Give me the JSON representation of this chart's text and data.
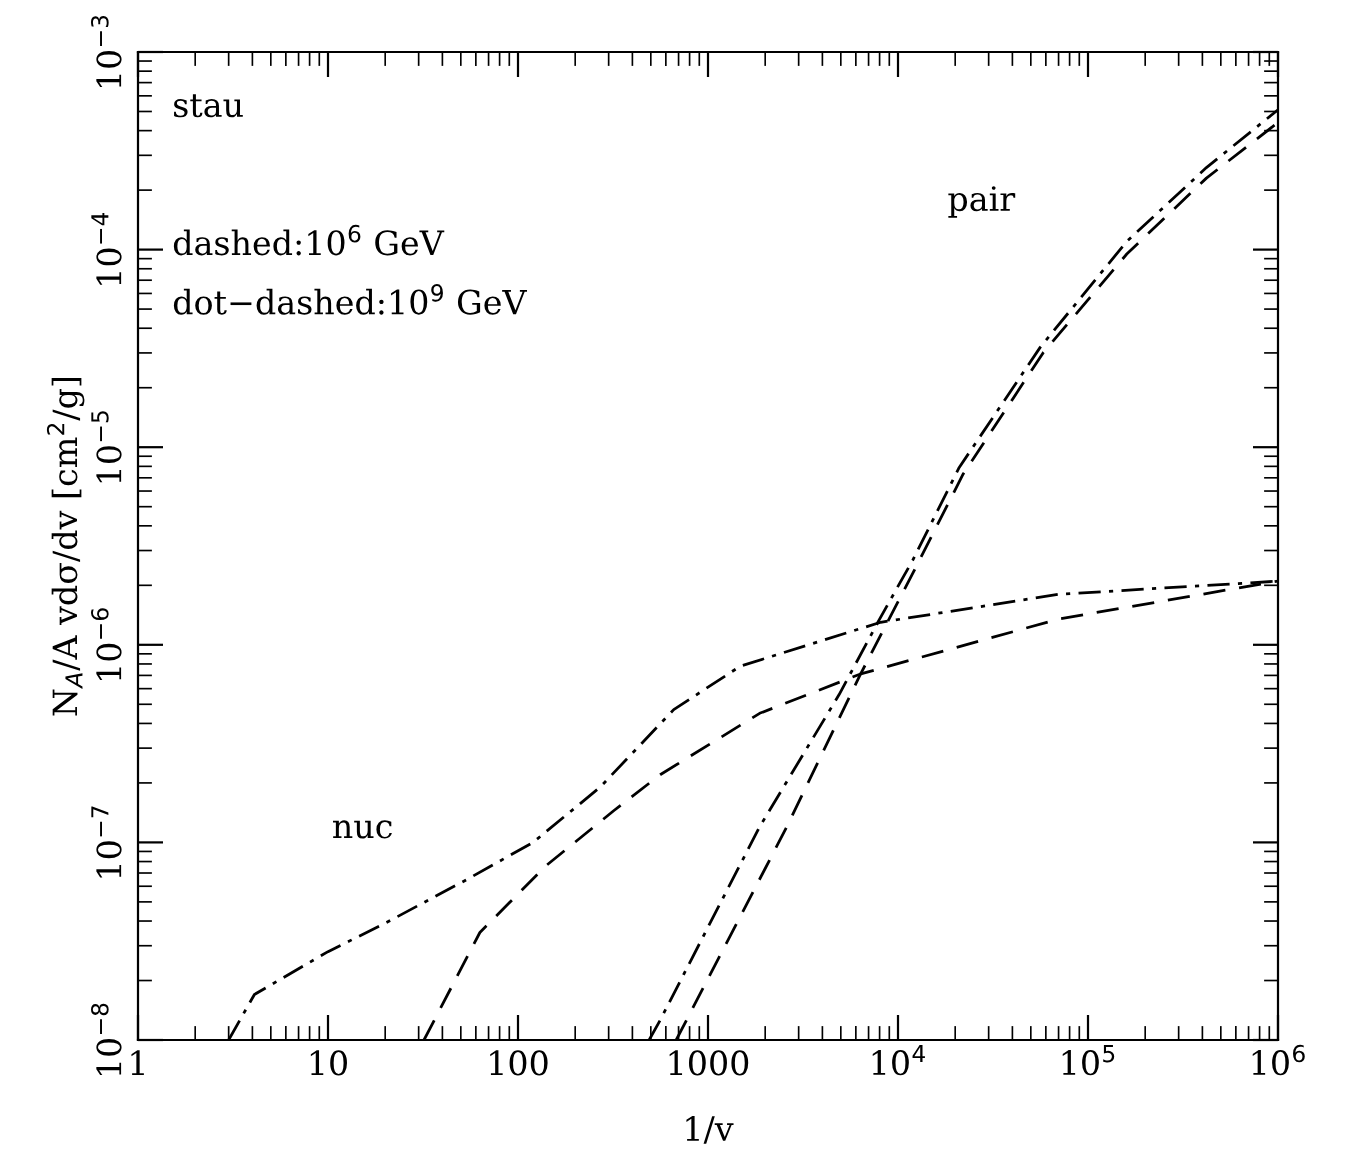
{
  "chart_data": {
    "type": "line",
    "xlabel": "1/v",
    "ylabel": "N$_{A}$/A vdσ/dv [cm$^{2}$/g]",
    "log": "xy",
    "grid": false,
    "xlim": [
      1,
      1000000
    ],
    "ylim": [
      1e-08,
      0.001
    ],
    "xticks": [
      1,
      10,
      100,
      1000,
      {
        "value": 10000,
        "label": "10$^{4}$"
      },
      {
        "value": 100000,
        "label": "10$^{5}$"
      },
      {
        "value": 1000000,
        "label": "10$^{6}$"
      }
    ],
    "yticks": [
      {
        "value": 1e-08,
        "label": "10$^{−8}$"
      },
      {
        "value": 1e-07,
        "label": "10$^{−7}$"
      },
      {
        "value": 1e-06,
        "label": "10$^{−6}$"
      },
      {
        "value": 1e-05,
        "label": "10$^{−5}$"
      },
      {
        "value": 0.0001,
        "label": "10$^{−4}$"
      },
      {
        "value": 0.001,
        "label": "10$^{−3}$"
      }
    ],
    "annotations": [
      "stau",
      "dashed:10$^{6}$ GeV",
      "dot−dashed:10$^{9}$ GeV",
      "pair",
      "nuc"
    ],
    "series": [
      {
        "color": "#000000",
        "line_style": "dashdot",
        "x": [
          3,
          4.1,
          10,
          20,
          54,
          120,
          270,
          660,
          1480,
          8100,
          70000,
          1000000
        ],
        "values": [
          1e-08,
          1.7e-08,
          2.8e-08,
          3.9e-08,
          6.5e-08,
          1e-07,
          1.9e-07,
          4.7e-07,
          7.8e-07,
          1.3e-06,
          1.8e-06,
          2.1e-06
        ]
      },
      {
        "color": "#000000",
        "line_style": "dashed",
        "x": [
          32,
          63,
          140,
          320,
          560,
          1870,
          6300,
          70000,
          1000000
        ],
        "values": [
          1e-08,
          3.5e-08,
          7.6e-08,
          1.45e-07,
          2.2e-07,
          4.5e-07,
          7.1e-07,
          1.35e-06,
          2.1e-06
        ]
      },
      {
        "color": "#000000",
        "line_style": "dashdot",
        "x": [
          490,
          560,
          1870,
          4900,
          8000,
          12000,
          21000,
          56000,
          160000,
          420000,
          1000000
        ],
        "values": [
          1e-08,
          1.26e-08,
          1.2e-07,
          5.6e-07,
          1.35e-06,
          2.7e-06,
          7.9e-06,
          3.2e-05,
          0.00011,
          0.00026,
          0.00051
        ]
      },
      {
        "color": "#000000",
        "line_style": "dashed",
        "x": [
          680,
          2600,
          6300,
          12500,
          22000,
          58000,
          160000,
          420000,
          1000000
        ],
        "values": [
          1e-08,
          1.2e-07,
          7e-07,
          2.5e-06,
          7.3e-06,
          3e-05,
          9.5e-05,
          0.00023,
          0.00044
        ]
      }
    ]
  }
}
